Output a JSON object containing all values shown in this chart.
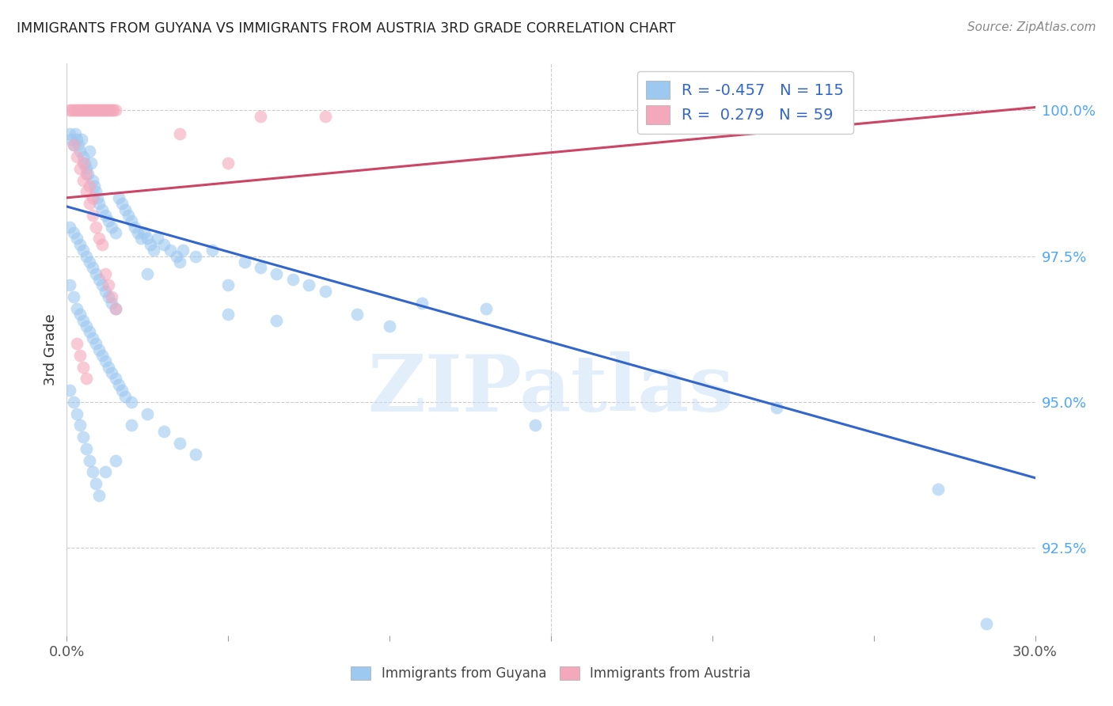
{
  "title": "IMMIGRANTS FROM GUYANA VS IMMIGRANTS FROM AUSTRIA 3RD GRADE CORRELATION CHART",
  "source": "Source: ZipAtlas.com",
  "ylabel": "3rd Grade",
  "yticks": [
    92.5,
    95.0,
    97.5,
    100.0
  ],
  "ytick_labels": [
    "92.5%",
    "95.0%",
    "97.5%",
    "100.0%"
  ],
  "xlim": [
    0.0,
    30.0
  ],
  "ylim": [
    91.0,
    100.8
  ],
  "legend_r_blue": "-0.457",
  "legend_n_blue": "115",
  "legend_r_pink": " 0.279",
  "legend_n_pink": "59",
  "blue_color": "#9DC8F0",
  "pink_color": "#F4A8BC",
  "blue_line_color": "#3366CC",
  "pink_line_color": "#CC4466",
  "watermark": "ZIPatlas",
  "blue_scatter": [
    [
      0.1,
      99.6
    ],
    [
      0.15,
      99.5
    ],
    [
      0.2,
      99.4
    ],
    [
      0.25,
      99.6
    ],
    [
      0.3,
      99.5
    ],
    [
      0.35,
      99.4
    ],
    [
      0.4,
      99.3
    ],
    [
      0.45,
      99.5
    ],
    [
      0.5,
      99.2
    ],
    [
      0.55,
      99.1
    ],
    [
      0.6,
      99.0
    ],
    [
      0.65,
      98.9
    ],
    [
      0.7,
      99.3
    ],
    [
      0.75,
      99.1
    ],
    [
      0.8,
      98.8
    ],
    [
      0.85,
      98.7
    ],
    [
      0.9,
      98.6
    ],
    [
      0.95,
      98.5
    ],
    [
      1.0,
      98.4
    ],
    [
      1.1,
      98.3
    ],
    [
      1.2,
      98.2
    ],
    [
      1.3,
      98.1
    ],
    [
      1.4,
      98.0
    ],
    [
      1.5,
      97.9
    ],
    [
      1.6,
      98.5
    ],
    [
      1.7,
      98.4
    ],
    [
      1.8,
      98.3
    ],
    [
      1.9,
      98.2
    ],
    [
      2.0,
      98.1
    ],
    [
      2.1,
      98.0
    ],
    [
      2.2,
      97.9
    ],
    [
      2.3,
      97.8
    ],
    [
      2.4,
      97.9
    ],
    [
      2.5,
      97.8
    ],
    [
      2.6,
      97.7
    ],
    [
      2.7,
      97.6
    ],
    [
      2.8,
      97.8
    ],
    [
      3.0,
      97.7
    ],
    [
      3.2,
      97.6
    ],
    [
      3.4,
      97.5
    ],
    [
      3.6,
      97.6
    ],
    [
      4.0,
      97.5
    ],
    [
      4.5,
      97.6
    ],
    [
      5.0,
      97.0
    ],
    [
      5.5,
      97.4
    ],
    [
      6.0,
      97.3
    ],
    [
      6.5,
      97.2
    ],
    [
      7.0,
      97.1
    ],
    [
      7.5,
      97.0
    ],
    [
      8.0,
      96.9
    ],
    [
      0.1,
      98.0
    ],
    [
      0.2,
      97.9
    ],
    [
      0.3,
      97.8
    ],
    [
      0.4,
      97.7
    ],
    [
      0.5,
      97.6
    ],
    [
      0.6,
      97.5
    ],
    [
      0.7,
      97.4
    ],
    [
      0.8,
      97.3
    ],
    [
      0.9,
      97.2
    ],
    [
      1.0,
      97.1
    ],
    [
      1.1,
      97.0
    ],
    [
      1.2,
      96.9
    ],
    [
      1.3,
      96.8
    ],
    [
      1.4,
      96.7
    ],
    [
      1.5,
      96.6
    ],
    [
      0.1,
      97.0
    ],
    [
      0.2,
      96.8
    ],
    [
      0.3,
      96.6
    ],
    [
      0.4,
      96.5
    ],
    [
      0.5,
      96.4
    ],
    [
      0.6,
      96.3
    ],
    [
      0.7,
      96.2
    ],
    [
      0.8,
      96.1
    ],
    [
      0.9,
      96.0
    ],
    [
      1.0,
      95.9
    ],
    [
      1.1,
      95.8
    ],
    [
      1.2,
      95.7
    ],
    [
      1.3,
      95.6
    ],
    [
      1.4,
      95.5
    ],
    [
      1.5,
      95.4
    ],
    [
      1.6,
      95.3
    ],
    [
      1.7,
      95.2
    ],
    [
      1.8,
      95.1
    ],
    [
      2.0,
      95.0
    ],
    [
      2.5,
      94.8
    ],
    [
      3.0,
      94.5
    ],
    [
      3.5,
      94.3
    ],
    [
      4.0,
      94.1
    ],
    [
      5.0,
      96.5
    ],
    [
      6.5,
      96.4
    ],
    [
      9.0,
      96.5
    ],
    [
      10.0,
      96.3
    ],
    [
      11.0,
      96.7
    ],
    [
      13.0,
      96.6
    ],
    [
      14.5,
      94.6
    ],
    [
      0.1,
      95.2
    ],
    [
      0.2,
      95.0
    ],
    [
      0.3,
      94.8
    ],
    [
      0.4,
      94.6
    ],
    [
      0.5,
      94.4
    ],
    [
      0.6,
      94.2
    ],
    [
      0.7,
      94.0
    ],
    [
      0.8,
      93.8
    ],
    [
      0.9,
      93.6
    ],
    [
      1.0,
      93.4
    ],
    [
      1.2,
      93.8
    ],
    [
      1.5,
      94.0
    ],
    [
      2.0,
      94.6
    ],
    [
      2.5,
      97.2
    ],
    [
      3.5,
      97.4
    ],
    [
      22.0,
      94.9
    ],
    [
      27.0,
      93.5
    ],
    [
      28.5,
      91.2
    ]
  ],
  "pink_scatter": [
    [
      0.1,
      100.0
    ],
    [
      0.15,
      100.0
    ],
    [
      0.2,
      100.0
    ],
    [
      0.25,
      100.0
    ],
    [
      0.3,
      100.0
    ],
    [
      0.35,
      100.0
    ],
    [
      0.4,
      100.0
    ],
    [
      0.45,
      100.0
    ],
    [
      0.5,
      100.0
    ],
    [
      0.55,
      100.0
    ],
    [
      0.6,
      100.0
    ],
    [
      0.65,
      100.0
    ],
    [
      0.7,
      100.0
    ],
    [
      0.75,
      100.0
    ],
    [
      0.8,
      100.0
    ],
    [
      0.85,
      100.0
    ],
    [
      0.9,
      100.0
    ],
    [
      0.95,
      100.0
    ],
    [
      1.0,
      100.0
    ],
    [
      1.05,
      100.0
    ],
    [
      1.1,
      100.0
    ],
    [
      1.15,
      100.0
    ],
    [
      1.2,
      100.0
    ],
    [
      1.25,
      100.0
    ],
    [
      1.3,
      100.0
    ],
    [
      1.35,
      100.0
    ],
    [
      1.4,
      100.0
    ],
    [
      1.45,
      100.0
    ],
    [
      1.5,
      100.0
    ],
    [
      0.2,
      99.4
    ],
    [
      0.3,
      99.2
    ],
    [
      0.4,
      99.0
    ],
    [
      0.5,
      98.8
    ],
    [
      0.6,
      98.6
    ],
    [
      0.7,
      98.4
    ],
    [
      0.8,
      98.2
    ],
    [
      0.9,
      98.0
    ],
    [
      1.0,
      97.8
    ],
    [
      1.1,
      97.7
    ],
    [
      0.5,
      99.1
    ],
    [
      0.6,
      98.9
    ],
    [
      0.7,
      98.7
    ],
    [
      0.8,
      98.5
    ],
    [
      5.0,
      99.1
    ],
    [
      0.3,
      96.0
    ],
    [
      0.4,
      95.8
    ],
    [
      0.5,
      95.6
    ],
    [
      0.6,
      95.4
    ],
    [
      1.2,
      97.2
    ],
    [
      1.3,
      97.0
    ],
    [
      1.4,
      96.8
    ],
    [
      1.5,
      96.6
    ],
    [
      3.5,
      99.6
    ],
    [
      6.0,
      99.9
    ],
    [
      8.0,
      99.9
    ]
  ],
  "blue_trendline": [
    [
      0.0,
      98.35
    ],
    [
      30.0,
      93.7
    ]
  ],
  "pink_trendline": [
    [
      0.0,
      98.5
    ],
    [
      30.0,
      100.05
    ]
  ]
}
